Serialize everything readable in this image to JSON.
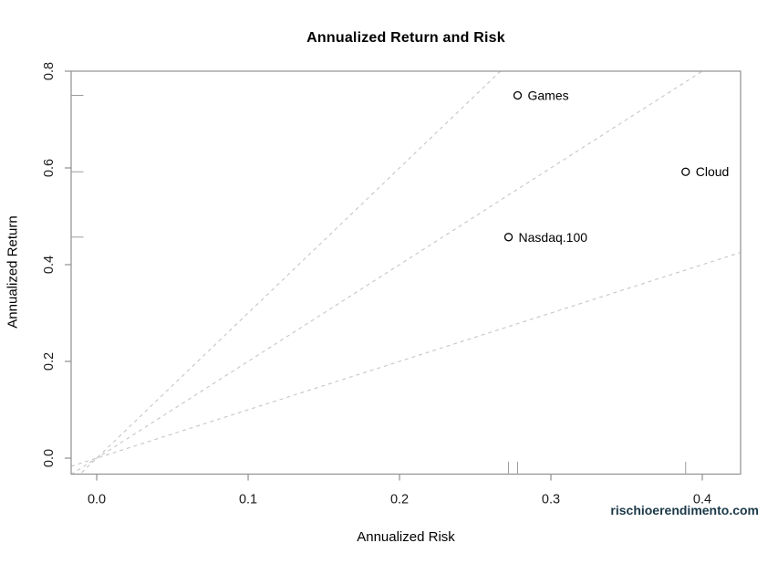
{
  "watermark": "rischioerendimento.com",
  "colors": {
    "point": "#000000",
    "point_fill": "#ffffff",
    "dashed_line": "#c6c6c6",
    "axis": "#8f8f8f",
    "rug": "#9c9c9c",
    "tick_label": "#1a1a1a",
    "point_label": "#000000",
    "watermark": "#1b3948",
    "background": "#ffffff"
  },
  "chart_data": {
    "type": "scatter",
    "title": "Annualized Return and Risk",
    "xlabel": "Annualized Risk",
    "ylabel": "Annualized Return",
    "xlim": [
      -0.0169,
      0.4253
    ],
    "ylim": [
      -0.033,
      0.8
    ],
    "x_ticks": [
      0,
      0.1,
      0.2,
      0.3,
      0.4
    ],
    "y_ticks": [
      0,
      0.2,
      0.4,
      0.6,
      0.8
    ],
    "tick_decimals": 1,
    "grid": false,
    "legend": null,
    "marker": "open-circle",
    "points": [
      {
        "label": "Games",
        "x": 0.278,
        "y": 0.75
      },
      {
        "label": "Cloud",
        "x": 0.389,
        "y": 0.592
      },
      {
        "label": "Nasdaq.100",
        "x": 0.272,
        "y": 0.457
      }
    ],
    "reference_lines": [
      {
        "name": "slope-3",
        "slope": 3,
        "intercept": 0,
        "style": "dashed"
      },
      {
        "name": "slope-2",
        "slope": 2,
        "intercept": 0,
        "style": "dashed"
      },
      {
        "name": "slope-1",
        "slope": 1,
        "intercept": 0,
        "style": "dashed"
      }
    ],
    "rug": {
      "bottom": [
        0.272,
        0.278,
        0.389
      ],
      "left": [
        0.457,
        0.592,
        0.75
      ]
    }
  }
}
